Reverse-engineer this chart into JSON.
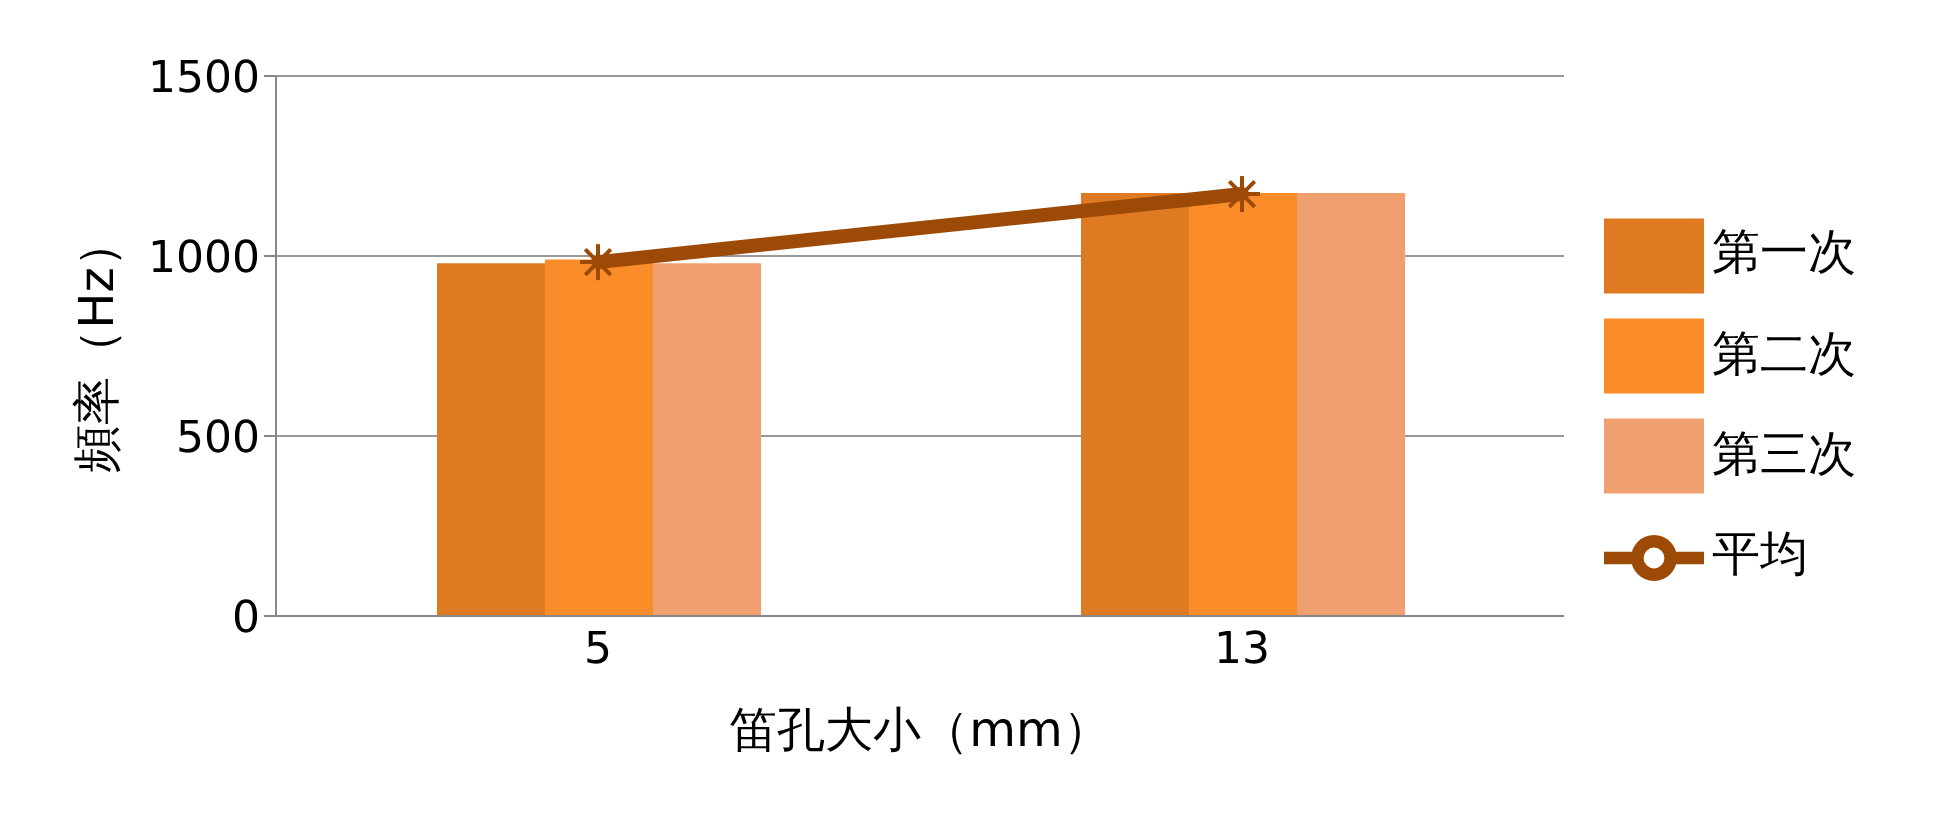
{
  "chart_data": {
    "type": "bar",
    "xlabel": "笛孔大小（mm）",
    "ylabel": "頻率（Hz）",
    "categories": [
      "5",
      "13"
    ],
    "series": [
      {
        "name": "第一次",
        "color": "#e07a22",
        "values": [
          980,
          1175
        ]
      },
      {
        "name": "第二次",
        "color": "#fb8c2a",
        "values": [
          990,
          1175
        ]
      },
      {
        "name": "第三次",
        "color": "#f0a070",
        "values": [
          980,
          1175
        ]
      },
      {
        "name": "平均",
        "type": "line",
        "color": "#9c4a05",
        "values": [
          983,
          1172
        ],
        "marker": "cross"
      }
    ],
    "ylim": [
      0,
      1500
    ],
    "yticks": [
      0,
      500,
      1000,
      1500
    ],
    "grid": "y",
    "legend": "right"
  }
}
